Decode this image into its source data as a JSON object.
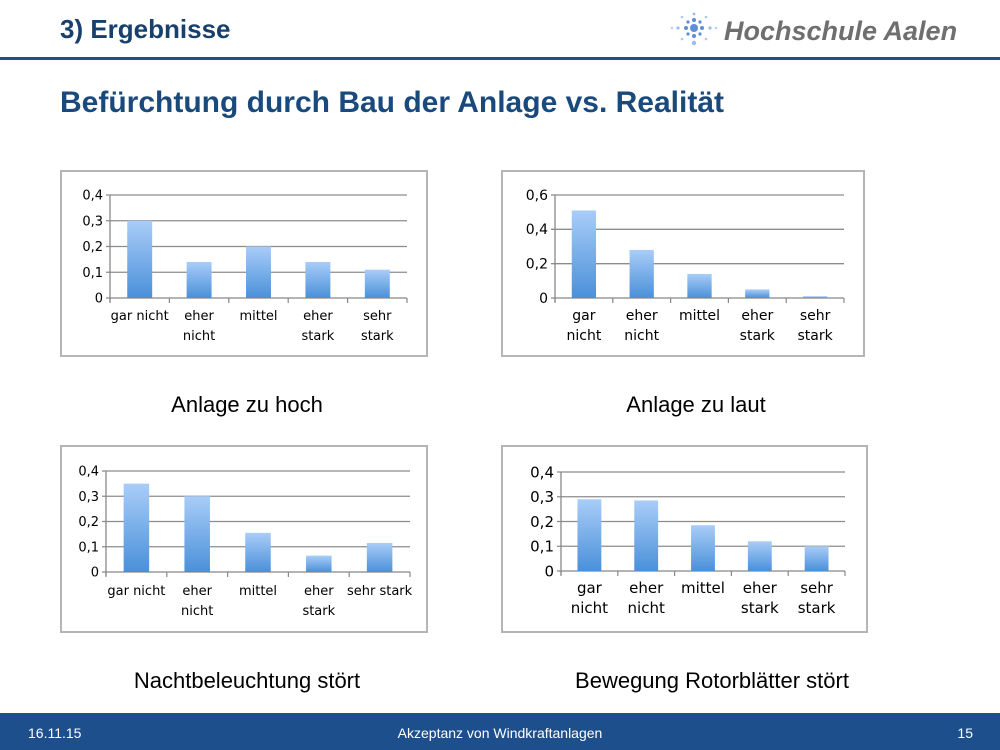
{
  "header": {
    "section": "3) Ergebnisse",
    "logo_text": "Hochschule Aalen"
  },
  "title": "Befürchtung durch Bau der Anlage vs. Realität",
  "footer": {
    "date": "16.11.15",
    "topic": "Akzeptanz von Windkraftanlagen",
    "page": "15"
  },
  "colors": {
    "bar_top": "#a9cdf8",
    "bar_bottom": "#4a90d9",
    "brand": "#1d4f8c"
  },
  "chart_data": [
    {
      "type": "bar",
      "title": "Anlage zu hoch",
      "categories": [
        [
          "gar nicht"
        ],
        [
          "eher",
          "nicht"
        ],
        [
          "mittel"
        ],
        [
          "eher",
          "stark"
        ],
        [
          "sehr",
          "stark"
        ]
      ],
      "values": [
        0.3,
        0.14,
        0.2,
        0.14,
        0.11
      ],
      "yticks": [
        "0",
        "0,1",
        "0,2",
        "0,3",
        "0,4"
      ],
      "ylim": [
        0,
        0.4
      ],
      "grid": true
    },
    {
      "type": "bar",
      "title": "Anlage zu laut",
      "categories": [
        [
          "gar",
          "nicht"
        ],
        [
          "eher",
          "nicht"
        ],
        [
          "mittel"
        ],
        [
          "eher",
          "stark"
        ],
        [
          "sehr",
          "stark"
        ]
      ],
      "values": [
        0.51,
        0.28,
        0.14,
        0.05,
        0.01
      ],
      "yticks": [
        "0",
        "0,2",
        "0,4",
        "0,6"
      ],
      "ylim": [
        0,
        0.6
      ],
      "grid": true
    },
    {
      "type": "bar",
      "title": "Nachtbeleuchtung stört",
      "categories": [
        [
          "gar nicht"
        ],
        [
          "eher",
          "nicht"
        ],
        [
          "mittel"
        ],
        [
          "eher",
          "stark"
        ],
        [
          "sehr stark"
        ]
      ],
      "values": [
        0.35,
        0.3,
        0.155,
        0.065,
        0.115
      ],
      "yticks": [
        "0",
        "0,1",
        "0,2",
        "0,3",
        "0,4"
      ],
      "ylim": [
        0,
        0.4
      ],
      "grid": true
    },
    {
      "type": "bar",
      "title": "Bewegung Rotorblätter stört",
      "categories": [
        [
          "gar",
          "nicht"
        ],
        [
          "eher",
          "nicht"
        ],
        [
          "mittel"
        ],
        [
          "eher",
          "stark"
        ],
        [
          "sehr",
          "stark"
        ]
      ],
      "values": [
        0.29,
        0.285,
        0.185,
        0.12,
        0.1
      ],
      "yticks": [
        "0",
        "0,1",
        "0,2",
        "0,3",
        "0,4"
      ],
      "ylim": [
        0,
        0.4
      ],
      "grid": true
    }
  ]
}
